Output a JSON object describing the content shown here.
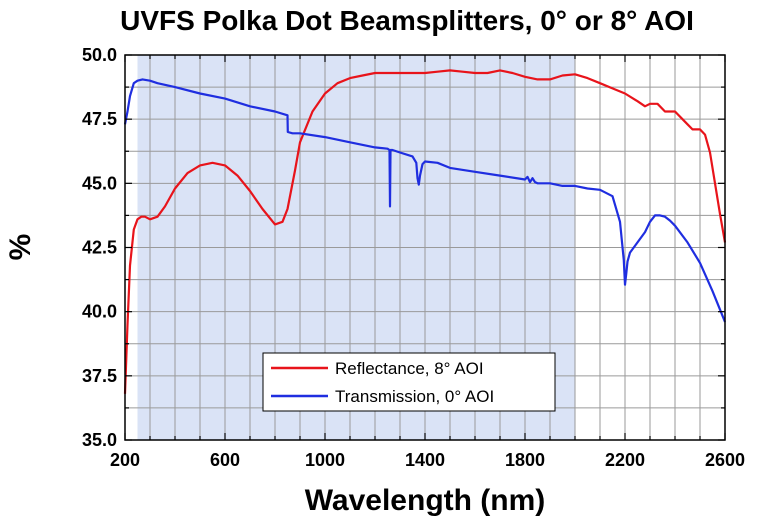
{
  "chart_data": {
    "type": "line",
    "title": "UVFS Polka Dot Beamsplitters, 0° or 8° AOI",
    "xlabel": "Wavelength (nm)",
    "ylabel": "%",
    "xlim": [
      200,
      2600
    ],
    "ylim": [
      35.0,
      50.0
    ],
    "xticks": [
      "200",
      "600",
      "1000",
      "1400",
      "1800",
      "2200",
      "2600"
    ],
    "yticks": [
      "35.0",
      "37.5",
      "40.0",
      "42.5",
      "45.0",
      "47.5",
      "50.0"
    ],
    "grid": true,
    "shaded_region": {
      "x": [
        250,
        2000
      ],
      "color": "#dae3f6"
    },
    "legend_position": "bottom-center",
    "series": [
      {
        "name": "Reflectance, 8° AOI",
        "color": "#e8141b",
        "x": [
          200,
          210,
          220,
          235,
          250,
          265,
          280,
          300,
          330,
          360,
          400,
          450,
          500,
          550,
          600,
          650,
          700,
          750,
          800,
          830,
          850,
          880,
          900,
          950,
          1000,
          1050,
          1100,
          1150,
          1200,
          1300,
          1350,
          1400,
          1450,
          1500,
          1550,
          1600,
          1650,
          1700,
          1750,
          1800,
          1850,
          1900,
          1950,
          2000,
          2050,
          2100,
          2150,
          2200,
          2250,
          2280,
          2300,
          2330,
          2360,
          2400,
          2430,
          2450,
          2470,
          2500,
          2520,
          2540,
          2560,
          2580,
          2600
        ],
        "y": [
          36.8,
          39.5,
          41.8,
          43.2,
          43.6,
          43.7,
          43.7,
          43.6,
          43.7,
          44.1,
          44.8,
          45.4,
          45.7,
          45.8,
          45.7,
          45.3,
          44.7,
          44.0,
          43.4,
          43.5,
          44.0,
          45.5,
          46.6,
          47.8,
          48.5,
          48.9,
          49.1,
          49.2,
          49.3,
          49.3,
          49.3,
          49.3,
          49.35,
          49.4,
          49.35,
          49.3,
          49.3,
          49.4,
          49.3,
          49.15,
          49.05,
          49.05,
          49.2,
          49.25,
          49.1,
          48.9,
          48.7,
          48.5,
          48.2,
          48.0,
          48.1,
          48.1,
          47.8,
          47.8,
          47.5,
          47.3,
          47.1,
          47.1,
          46.9,
          46.2,
          45.0,
          43.8,
          42.7
        ]
      },
      {
        "name": "Transmission, 0° AOI",
        "color": "#1f2ee0",
        "x": [
          200,
          210,
          220,
          235,
          250,
          270,
          300,
          330,
          400,
          500,
          600,
          700,
          800,
          850,
          851,
          870,
          900,
          1000,
          1100,
          1200,
          1250,
          1258,
          1260,
          1262,
          1270,
          1300,
          1350,
          1365,
          1370,
          1375,
          1380,
          1390,
          1400,
          1450,
          1500,
          1600,
          1700,
          1800,
          1810,
          1820,
          1830,
          1840,
          1850,
          1900,
          1950,
          2000,
          2050,
          2100,
          2150,
          2180,
          2195,
          2200,
          2205,
          2210,
          2220,
          2250,
          2280,
          2300,
          2320,
          2340,
          2360,
          2380,
          2400,
          2450,
          2500,
          2550,
          2600
        ],
        "y": [
          47.3,
          47.8,
          48.4,
          48.9,
          49.0,
          49.05,
          49.0,
          48.9,
          48.75,
          48.5,
          48.3,
          48.0,
          47.8,
          47.65,
          47.0,
          46.95,
          46.95,
          46.8,
          46.6,
          46.4,
          46.35,
          46.3,
          44.1,
          46.3,
          46.3,
          46.2,
          46.05,
          45.8,
          45.2,
          44.95,
          45.3,
          45.75,
          45.85,
          45.8,
          45.6,
          45.45,
          45.3,
          45.15,
          45.25,
          45.05,
          45.2,
          45.05,
          45.0,
          45.0,
          44.9,
          44.9,
          44.8,
          44.75,
          44.5,
          43.5,
          42.0,
          41.05,
          41.5,
          41.95,
          42.3,
          42.7,
          43.1,
          43.5,
          43.75,
          43.75,
          43.7,
          43.55,
          43.35,
          42.7,
          41.9,
          40.8,
          39.6
        ]
      }
    ]
  }
}
